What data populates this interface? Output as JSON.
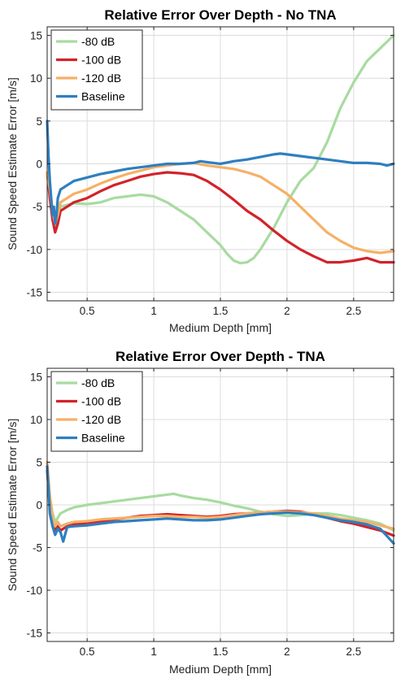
{
  "chart_data": [
    {
      "type": "line",
      "title": "Relative Error Over Depth - No TNA",
      "xlabel": "Medium Depth [mm]",
      "ylabel": "Sound Speed Estimate Error [m/s]",
      "xlim": [
        0.2,
        2.8
      ],
      "ylim": [
        -16,
        16
      ],
      "xticks": [
        0.5,
        1,
        1.5,
        2,
        2.5
      ],
      "xtick_labels": [
        "0.5",
        "1",
        "1.5",
        "2",
        "2.5"
      ],
      "yticks": [
        -15,
        -10,
        -5,
        0,
        5,
        10,
        15
      ],
      "ytick_labels": [
        "-15",
        "-10",
        "-5",
        "0",
        "5",
        "10",
        "15"
      ],
      "grid": true,
      "legend": "top-left",
      "series": [
        {
          "name": "-80 dB",
          "color": "#a8dba0",
          "x": [
            0.2,
            0.22,
            0.24,
            0.26,
            0.28,
            0.3,
            0.35,
            0.4,
            0.5,
            0.6,
            0.7,
            0.8,
            0.9,
            1.0,
            1.1,
            1.2,
            1.3,
            1.4,
            1.5,
            1.55,
            1.6,
            1.65,
            1.7,
            1.75,
            1.8,
            1.9,
            2.0,
            2.1,
            2.2,
            2.3,
            2.4,
            2.5,
            2.6,
            2.7,
            2.8
          ],
          "y": [
            -1,
            -3,
            -6,
            -8,
            -6.5,
            -5,
            -4.8,
            -4.6,
            -4.7,
            -4.5,
            -4.0,
            -3.8,
            -3.6,
            -3.8,
            -4.5,
            -5.5,
            -6.5,
            -8.0,
            -9.5,
            -10.5,
            -11.3,
            -11.6,
            -11.5,
            -11.0,
            -10.0,
            -7.5,
            -4.5,
            -2.0,
            -0.5,
            2.5,
            6.5,
            9.5,
            12.0,
            13.5,
            15.0
          ]
        },
        {
          "name": "-100 dB",
          "color": "#d2232a",
          "x": [
            0.2,
            0.22,
            0.24,
            0.26,
            0.28,
            0.3,
            0.35,
            0.4,
            0.5,
            0.6,
            0.7,
            0.8,
            0.9,
            1.0,
            1.1,
            1.2,
            1.3,
            1.4,
            1.5,
            1.6,
            1.7,
            1.8,
            1.9,
            2.0,
            2.1,
            2.2,
            2.3,
            2.4,
            2.5,
            2.6,
            2.7,
            2.8
          ],
          "y": [
            -1,
            -4,
            -6.5,
            -8,
            -7,
            -5.5,
            -5.0,
            -4.5,
            -4.0,
            -3.2,
            -2.5,
            -2.0,
            -1.5,
            -1.2,
            -1.0,
            -1.1,
            -1.3,
            -2.0,
            -3.0,
            -4.2,
            -5.5,
            -6.5,
            -7.8,
            -9.0,
            -10.0,
            -10.8,
            -11.5,
            -11.5,
            -11.3,
            -11.0,
            -11.5,
            -11.5
          ]
        },
        {
          "name": "-120 dB",
          "color": "#f6b066",
          "x": [
            0.2,
            0.22,
            0.24,
            0.26,
            0.28,
            0.3,
            0.35,
            0.4,
            0.5,
            0.6,
            0.7,
            0.8,
            0.9,
            1.0,
            1.1,
            1.2,
            1.3,
            1.4,
            1.5,
            1.6,
            1.7,
            1.8,
            1.9,
            2.0,
            2.1,
            2.2,
            2.3,
            2.4,
            2.5,
            2.6,
            2.7,
            2.8
          ],
          "y": [
            -1,
            -3,
            -5.5,
            -7,
            -6,
            -4.5,
            -4.0,
            -3.5,
            -3.0,
            -2.3,
            -1.7,
            -1.2,
            -0.8,
            -0.4,
            -0.2,
            0.0,
            0.1,
            -0.2,
            -0.4,
            -0.6,
            -1.0,
            -1.5,
            -2.5,
            -3.5,
            -5.0,
            -6.5,
            -8.0,
            -9.0,
            -9.8,
            -10.2,
            -10.4,
            -10.2
          ]
        },
        {
          "name": "Baseline",
          "color": "#2e7fc0",
          "x": [
            0.2,
            0.21,
            0.22,
            0.23,
            0.24,
            0.25,
            0.26,
            0.27,
            0.28,
            0.3,
            0.35,
            0.4,
            0.5,
            0.6,
            0.7,
            0.8,
            0.9,
            1.0,
            1.1,
            1.2,
            1.3,
            1.35,
            1.4,
            1.5,
            1.6,
            1.7,
            1.8,
            1.9,
            1.95,
            2.0,
            2.1,
            2.2,
            2.3,
            2.4,
            2.5,
            2.6,
            2.7,
            2.75,
            2.8
          ],
          "y": [
            5,
            1,
            -2,
            -4,
            -6,
            -5,
            -7,
            -6,
            -4,
            -3,
            -2.5,
            -2.0,
            -1.6,
            -1.2,
            -0.9,
            -0.6,
            -0.4,
            -0.2,
            0.0,
            0.0,
            0.1,
            0.3,
            0.2,
            0.0,
            0.3,
            0.5,
            0.8,
            1.1,
            1.2,
            1.1,
            0.9,
            0.7,
            0.5,
            0.3,
            0.1,
            0.1,
            0.0,
            -0.2,
            0.0
          ]
        }
      ]
    },
    {
      "type": "line",
      "title": "Relative Error Over Depth - TNA",
      "xlabel": "Medium Depth [mm]",
      "ylabel": "Sound Speed Estimate Error [m/s]",
      "xlim": [
        0.2,
        2.8
      ],
      "ylim": [
        -16,
        16
      ],
      "xticks": [
        0.5,
        1,
        1.5,
        2,
        2.5
      ],
      "xtick_labels": [
        "0.5",
        "1",
        "1.5",
        "2",
        "2.5"
      ],
      "yticks": [
        -15,
        -10,
        -5,
        0,
        5,
        10,
        15
      ],
      "ytick_labels": [
        "-15",
        "-10",
        "-5",
        "0",
        "5",
        "10",
        "15"
      ],
      "grid": true,
      "legend": "top-left",
      "series": [
        {
          "name": "-80 dB",
          "color": "#a8dba0",
          "x": [
            0.2,
            0.22,
            0.24,
            0.26,
            0.28,
            0.3,
            0.35,
            0.4,
            0.5,
            0.6,
            0.7,
            0.8,
            0.9,
            1.0,
            1.1,
            1.15,
            1.2,
            1.3,
            1.4,
            1.5,
            1.6,
            1.7,
            1.8,
            1.9,
            2.0,
            2.1,
            2.2,
            2.3,
            2.4,
            2.5,
            2.6,
            2.7,
            2.8
          ],
          "y": [
            4,
            1,
            -1,
            -2,
            -1.5,
            -1,
            -0.6,
            -0.3,
            0.0,
            0.2,
            0.4,
            0.6,
            0.8,
            1.0,
            1.2,
            1.3,
            1.1,
            0.8,
            0.6,
            0.3,
            -0.1,
            -0.4,
            -0.8,
            -1.1,
            -1.3,
            -1.2,
            -1.0,
            -1.0,
            -1.2,
            -1.5,
            -1.8,
            -2.2,
            -3.0
          ]
        },
        {
          "name": "-100 dB",
          "color": "#d2232a",
          "x": [
            0.2,
            0.22,
            0.24,
            0.26,
            0.28,
            0.3,
            0.35,
            0.4,
            0.5,
            0.6,
            0.7,
            0.8,
            0.9,
            1.0,
            1.1,
            1.2,
            1.3,
            1.4,
            1.5,
            1.6,
            1.7,
            1.8,
            1.9,
            2.0,
            2.1,
            2.2,
            2.3,
            2.4,
            2.5,
            2.6,
            2.7,
            2.8
          ],
          "y": [
            4,
            0,
            -2,
            -3,
            -2.5,
            -3,
            -2.5,
            -2.3,
            -2.1,
            -1.9,
            -1.7,
            -1.5,
            -1.3,
            -1.2,
            -1.1,
            -1.2,
            -1.3,
            -1.4,
            -1.3,
            -1.1,
            -1.0,
            -0.9,
            -0.8,
            -0.7,
            -0.8,
            -1.1,
            -1.5,
            -1.9,
            -2.2,
            -2.6,
            -3.0,
            -3.6
          ]
        },
        {
          "name": "-120 dB",
          "color": "#f6b066",
          "x": [
            0.2,
            0.22,
            0.24,
            0.26,
            0.28,
            0.3,
            0.35,
            0.4,
            0.5,
            0.6,
            0.7,
            0.8,
            0.9,
            1.0,
            1.1,
            1.2,
            1.3,
            1.4,
            1.5,
            1.6,
            1.7,
            1.8,
            1.9,
            2.0,
            2.1,
            2.2,
            2.3,
            2.4,
            2.5,
            2.6,
            2.7,
            2.8
          ],
          "y": [
            5,
            1,
            -1.5,
            -2.5,
            -2,
            -2.5,
            -2.2,
            -2.0,
            -1.9,
            -1.7,
            -1.6,
            -1.5,
            -1.4,
            -1.3,
            -1.3,
            -1.4,
            -1.4,
            -1.5,
            -1.4,
            -1.2,
            -1.0,
            -0.9,
            -0.8,
            -0.8,
            -0.9,
            -1.0,
            -1.3,
            -1.6,
            -1.8,
            -2.0,
            -2.4,
            -2.8
          ]
        },
        {
          "name": "Baseline",
          "color": "#2e7fc0",
          "x": [
            0.2,
            0.21,
            0.22,
            0.24,
            0.26,
            0.28,
            0.3,
            0.32,
            0.35,
            0.4,
            0.5,
            0.6,
            0.7,
            0.8,
            0.9,
            1.0,
            1.1,
            1.2,
            1.3,
            1.4,
            1.5,
            1.6,
            1.7,
            1.8,
            1.9,
            2.0,
            2.1,
            2.2,
            2.3,
            2.4,
            2.5,
            2.6,
            2.7,
            2.8
          ],
          "y": [
            4.5,
            2,
            -1,
            -2.5,
            -3.5,
            -2.8,
            -3.2,
            -4.3,
            -2.6,
            -2.5,
            -2.4,
            -2.2,
            -2.0,
            -1.9,
            -1.8,
            -1.7,
            -1.6,
            -1.7,
            -1.8,
            -1.8,
            -1.7,
            -1.5,
            -1.3,
            -1.1,
            -1.0,
            -0.9,
            -1.0,
            -1.2,
            -1.5,
            -1.8,
            -2.0,
            -2.3,
            -2.8,
            -4.5
          ]
        }
      ]
    }
  ]
}
